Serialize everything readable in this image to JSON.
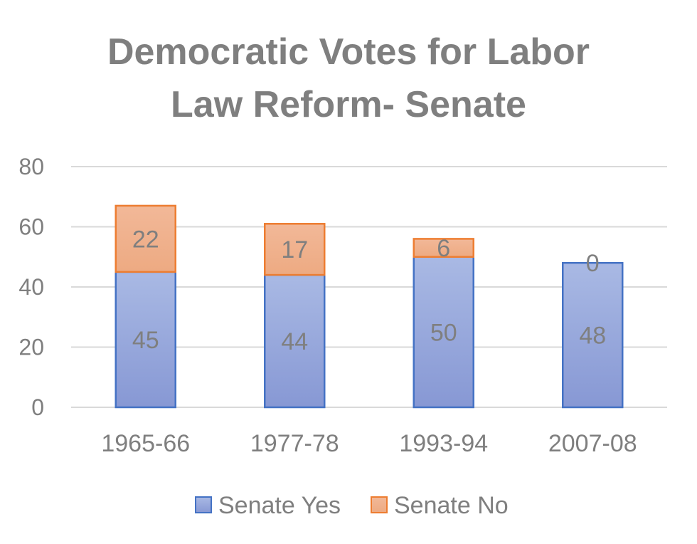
{
  "chart_data": {
    "type": "bar",
    "stacked": true,
    "title": "Democratic Votes for Labor Law Reform- Senate",
    "title_lines": [
      "Democratic Votes for Labor",
      "Law Reform- Senate"
    ],
    "xlabel": "",
    "ylabel": "",
    "ylim": [
      0,
      80
    ],
    "yticks": [
      0,
      20,
      40,
      60,
      80
    ],
    "grid": true,
    "legend_position": "bottom",
    "categories": [
      "1965-66",
      "1977-78",
      "1993-94",
      "2007-08"
    ],
    "series": [
      {
        "name": "Senate Yes",
        "values": [
          45,
          44,
          50,
          48
        ],
        "color": "#8fa3d9",
        "border": "#4472c4"
      },
      {
        "name": "Senate No",
        "values": [
          22,
          17,
          6,
          0
        ],
        "color": "#f0b08a",
        "border": "#ed7d31"
      }
    ]
  }
}
